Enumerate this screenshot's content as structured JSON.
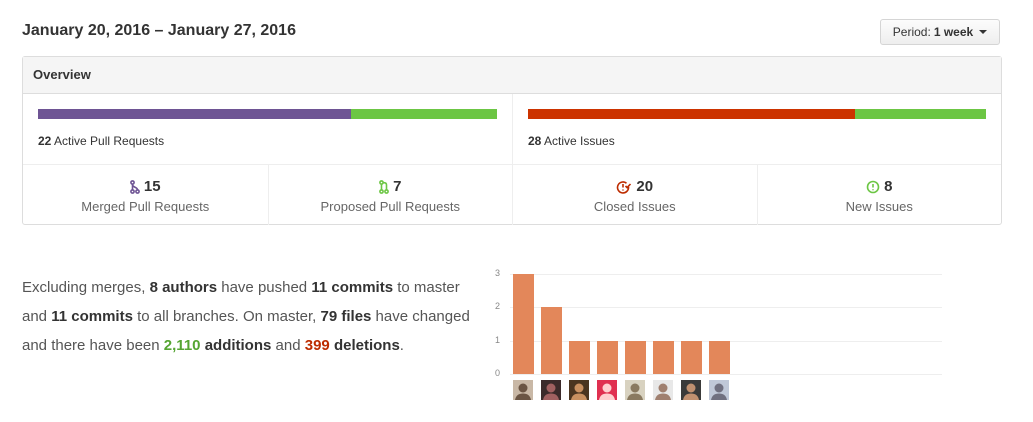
{
  "header": {
    "date_range": "January 20, 2016 – January 27, 2016",
    "period_prefix": "Period:",
    "period_value": "1 week"
  },
  "overview": {
    "title": "Overview",
    "pull_requests": {
      "active_count": "22",
      "active_label": "Active Pull Requests",
      "merged_fraction": 0.682,
      "merged_color": "#6e5494",
      "open_color": "#6cc644"
    },
    "issues": {
      "active_count": "28",
      "active_label": "Active Issues",
      "closed_fraction": 0.714,
      "closed_color": "#cc3300",
      "open_color": "#6cc644"
    },
    "stats": [
      {
        "icon": "git-merge-icon",
        "value": "15",
        "label": "Merged Pull Requests",
        "color": "#6e5494"
      },
      {
        "icon": "git-pull-request-icon",
        "value": "7",
        "label": "Proposed Pull Requests",
        "color": "#6cc644"
      },
      {
        "icon": "issue-closed-icon",
        "value": "20",
        "label": "Closed Issues",
        "color": "#bd2c00"
      },
      {
        "icon": "issue-opened-icon",
        "value": "8",
        "label": "New Issues",
        "color": "#6cc644"
      }
    ]
  },
  "summary": {
    "t1": "Excluding merges, ",
    "authors": "8 authors",
    "t2": " have pushed ",
    "commits_master": "11 commits",
    "t3": " to master and ",
    "commits_all": "11 commits",
    "t4": " to all branches. On master, ",
    "files": "79 files",
    "t5": " have changed and there have been ",
    "additions": "2,110",
    "t6": " ",
    "additions_word": "additions",
    "t7": " and ",
    "deletions": "399",
    "t8": " ",
    "deletions_word": "deletions",
    "t9": "."
  },
  "chart_data": {
    "type": "bar",
    "categories": [
      "author-1",
      "author-2",
      "author-3",
      "author-4",
      "author-5",
      "author-6",
      "author-7",
      "author-8"
    ],
    "values": [
      3,
      2,
      1,
      1,
      1,
      1,
      1,
      1
    ],
    "yticks": [
      "0",
      "1",
      "2",
      "3"
    ],
    "ylim": [
      0,
      3
    ],
    "color": "#e3875a",
    "grid": true
  },
  "avatars": [
    {
      "bg": "#c9b8a6",
      "fg": "#6b5544"
    },
    {
      "bg": "#3b2a2a",
      "fg": "#a06060"
    },
    {
      "bg": "#4a3520",
      "fg": "#c89060"
    },
    {
      "bg": "#e03050",
      "fg": "#ffd0d0"
    },
    {
      "bg": "#d8d2c0",
      "fg": "#8a7a60"
    },
    {
      "bg": "#e8e8e8",
      "fg": "#a08070"
    },
    {
      "bg": "#3a3a3a",
      "fg": "#c09070"
    },
    {
      "bg": "#c0c8d8",
      "fg": "#707080"
    }
  ]
}
